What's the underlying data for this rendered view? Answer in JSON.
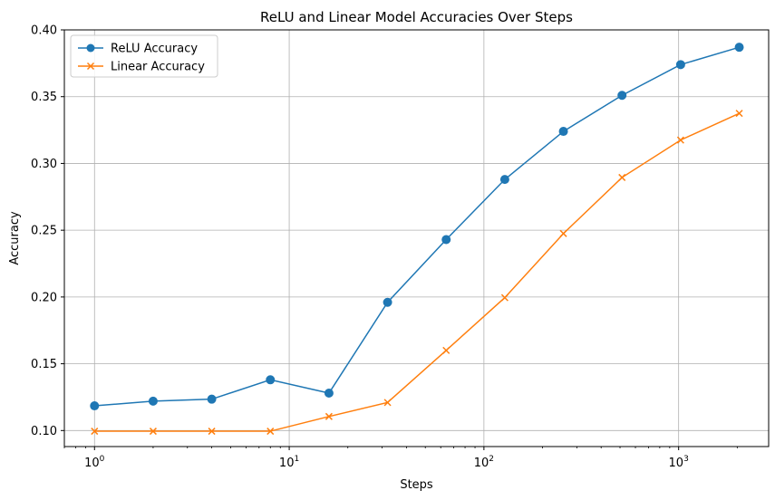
{
  "chart_data": {
    "type": "line",
    "title": "ReLU and Linear Model Accuracies Over Steps",
    "xlabel": "Steps",
    "ylabel": "Accuracy",
    "xscale": "log",
    "xlim": [
      0.7,
      2900
    ],
    "ylim": [
      0.088,
      0.4
    ],
    "grid": true,
    "legend_position": "top-left",
    "x": [
      1,
      2,
      4,
      8,
      16,
      32,
      64,
      128,
      256,
      512,
      1024,
      2048
    ],
    "x_ticks": [
      {
        "value": 1,
        "base": "10",
        "exp": "0"
      },
      {
        "value": 10,
        "base": "10",
        "exp": "1"
      },
      {
        "value": 100,
        "base": "10",
        "exp": "2"
      },
      {
        "value": 1000,
        "base": "10",
        "exp": "3"
      }
    ],
    "y_ticks": [
      {
        "value": 0.1,
        "label": "0.10"
      },
      {
        "value": 0.15,
        "label": "0.15"
      },
      {
        "value": 0.2,
        "label": "0.20"
      },
      {
        "value": 0.25,
        "label": "0.25"
      },
      {
        "value": 0.3,
        "label": "0.30"
      },
      {
        "value": 0.35,
        "label": "0.35"
      },
      {
        "value": 0.4,
        "label": "0.40"
      }
    ],
    "series": [
      {
        "name": "ReLU Accuracy",
        "color": "#1f77b4",
        "marker": "circle",
        "values": [
          0.1185,
          0.122,
          0.1235,
          0.138,
          0.128,
          0.196,
          0.243,
          0.288,
          0.324,
          0.351,
          0.374,
          0.387
        ]
      },
      {
        "name": "Linear Accuracy",
        "color": "#ff7f0e",
        "marker": "x",
        "values": [
          0.0995,
          0.0995,
          0.0995,
          0.0995,
          0.1105,
          0.121,
          0.16,
          0.1995,
          0.2475,
          0.2895,
          0.3175,
          0.3375
        ]
      }
    ]
  }
}
